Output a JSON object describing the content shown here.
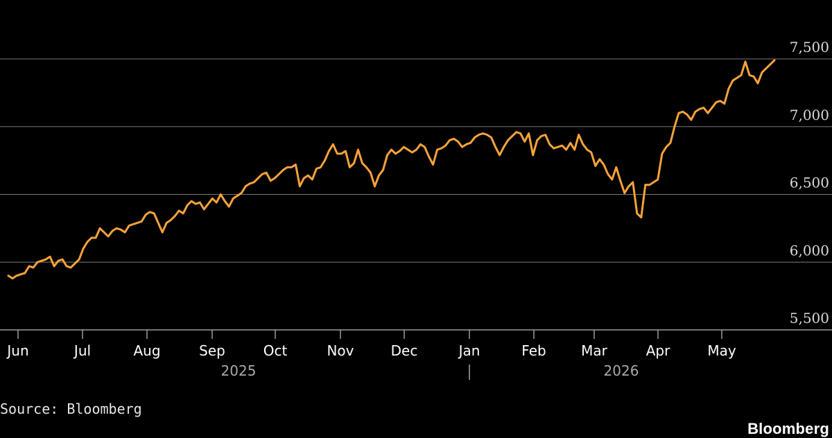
{
  "chart_data": {
    "type": "line",
    "title": "",
    "xlabel": "",
    "ylabel": "",
    "ylim": [
      5500,
      7500
    ],
    "y_ticks": [
      "7,500",
      "7,000",
      "6,500",
      "6,000",
      "5,500"
    ],
    "y_tick_values": [
      7500,
      7000,
      6500,
      6000,
      5500
    ],
    "grid": true,
    "x_ticks": [
      "Jun",
      "Jul",
      "Aug",
      "Sep",
      "Oct",
      "Nov",
      "Dec",
      "Jan",
      "Feb",
      "Mar",
      "Apr",
      "May"
    ],
    "years": [
      "2025",
      "2026"
    ],
    "series_color": "#f7a33b",
    "series": [
      {
        "values": [
          5900,
          5880,
          5900,
          5910,
          5920,
          5970,
          5960,
          6000,
          6010,
          6020,
          6040,
          5970,
          6010,
          6020,
          5970,
          5960,
          5990,
          6020,
          6100,
          6150,
          6180,
          6180,
          6250,
          6220,
          6190,
          6230,
          6250,
          6240,
          6220,
          6270,
          6280,
          6290,
          6300,
          6350,
          6370,
          6360,
          6290,
          6220,
          6290,
          6310,
          6340,
          6380,
          6360,
          6420,
          6450,
          6430,
          6440,
          6390,
          6430,
          6470,
          6440,
          6500,
          6450,
          6410,
          6470,
          6490,
          6510,
          6560,
          6580,
          6590,
          6620,
          6650,
          6660,
          6600,
          6620,
          6650,
          6680,
          6700,
          6700,
          6720,
          6560,
          6620,
          6640,
          6610,
          6690,
          6700,
          6750,
          6820,
          6870,
          6800,
          6800,
          6820,
          6700,
          6730,
          6830,
          6730,
          6700,
          6660,
          6560,
          6640,
          6680,
          6790,
          6830,
          6800,
          6820,
          6850,
          6830,
          6810,
          6830,
          6870,
          6850,
          6780,
          6720,
          6830,
          6840,
          6860,
          6900,
          6910,
          6890,
          6850,
          6870,
          6880,
          6920,
          6940,
          6950,
          6940,
          6920,
          6850,
          6790,
          6850,
          6900,
          6930,
          6960,
          6950,
          6890,
          6950,
          6790,
          6900,
          6930,
          6940,
          6870,
          6840,
          6850,
          6860,
          6830,
          6880,
          6830,
          6940,
          6870,
          6830,
          6810,
          6710,
          6760,
          6720,
          6650,
          6610,
          6700,
          6600,
          6510,
          6560,
          6590,
          6360,
          6330,
          6570,
          6570,
          6590,
          6610,
          6800,
          6850,
          6880,
          7000,
          7100,
          7110,
          7090,
          7050,
          7110,
          7130,
          7140,
          7100,
          7140,
          7180,
          7190,
          7170,
          7280,
          7340,
          7360,
          7380,
          7480,
          7380,
          7370,
          7320,
          7400,
          7430,
          7460,
          7490
        ]
      }
    ]
  },
  "footer": {
    "source": "Source: Bloomberg",
    "brand": "Bloomberg"
  }
}
